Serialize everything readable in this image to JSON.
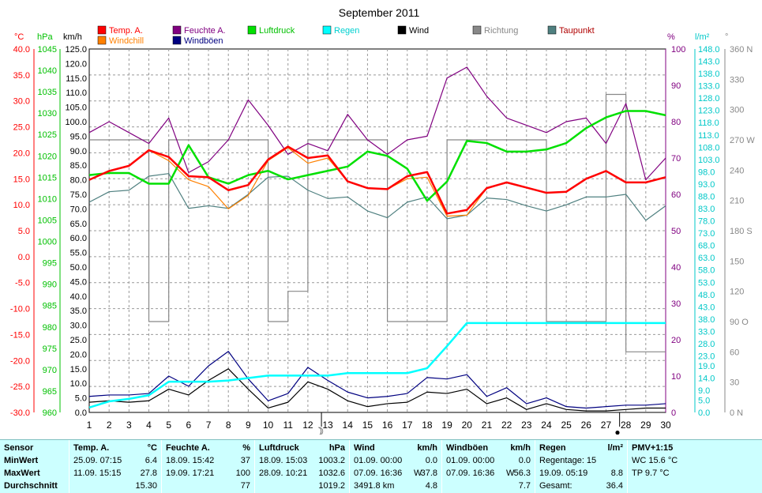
{
  "title": "September 2011",
  "axes": {
    "left_units": {
      "temp": "°C",
      "press": "hPa",
      "wind": "km/h"
    },
    "right_units": {
      "hum": "%",
      "rain": "l/m²",
      "dir": "°"
    },
    "temp_ticks": [
      "40.0",
      "35.0",
      "30.0",
      "25.0",
      "20.0",
      "15.0",
      "10.0",
      "5.0",
      "0.0",
      "-5.0",
      "-10.0",
      "-15.0",
      "-20.0",
      "-25.0",
      "-30.0"
    ],
    "press_ticks": [
      "1045",
      "1040",
      "1035",
      "1030",
      "1025",
      "1020",
      "1015",
      "1010",
      "1005",
      "1000",
      "995",
      "990",
      "985",
      "980",
      "975",
      "970",
      "965",
      "960"
    ],
    "wind_ticks": [
      "125.0",
      "120.0",
      "115.0",
      "110.0",
      "105.0",
      "100.0",
      "95.0",
      "90.0",
      "85.0",
      "80.0",
      "75.0",
      "70.0",
      "65.0",
      "60.0",
      "55.0",
      "50.0",
      "45.0",
      "40.0",
      "35.0",
      "30.0",
      "25.0",
      "20.0",
      "15.0",
      "10.0",
      "5.0",
      "0.0"
    ],
    "hum_ticks": [
      "100",
      "90",
      "80",
      "70",
      "60",
      "50",
      "40",
      "30",
      "20",
      "10",
      "0"
    ],
    "rain_ticks": [
      "148.0",
      "143.0",
      "138.0",
      "133.0",
      "128.0",
      "123.0",
      "118.0",
      "113.0",
      "108.0",
      "103.0",
      "98.0",
      "93.0",
      "88.0",
      "83.0",
      "78.0",
      "73.0",
      "68.0",
      "63.0",
      "58.0",
      "53.0",
      "48.0",
      "43.0",
      "38.0",
      "33.0",
      "28.0",
      "23.0",
      "19.0",
      "14.0",
      "9.0",
      "5.0",
      "0.0"
    ],
    "dir_ticks": [
      "360 N",
      "330",
      "300",
      "270 W",
      "240",
      "210",
      "180 S",
      "150",
      "120",
      "90 O",
      "60",
      "30",
      "0 N"
    ],
    "x_ticks": [
      "1",
      "2",
      "3",
      "4",
      "5",
      "6",
      "7",
      "8",
      "9",
      "10",
      "11",
      "12",
      "13",
      "14",
      "15",
      "16",
      "17",
      "18",
      "19",
      "20",
      "21",
      "22",
      "23",
      "24",
      "25",
      "26",
      "27",
      "28",
      "29",
      "30"
    ]
  },
  "moon_symbols": {
    "day13": "☽",
    "day28": "●"
  },
  "chart_data": {
    "type": "line",
    "title": "September 2011",
    "x": [
      1,
      2,
      3,
      4,
      5,
      6,
      7,
      8,
      9,
      10,
      11,
      12,
      13,
      14,
      15,
      16,
      17,
      18,
      19,
      20,
      21,
      22,
      23,
      24,
      25,
      26,
      27,
      28,
      29,
      30
    ],
    "series": [
      {
        "name": "Temp. A.",
        "unit": "°C",
        "color": "#ff0000",
        "values": [
          14.8,
          16.5,
          17.5,
          20.5,
          19.2,
          15.5,
          15.3,
          12.8,
          13.8,
          18.7,
          21.2,
          19.0,
          19.5,
          14.5,
          13.2,
          13.0,
          15.5,
          16.3,
          8.3,
          9.0,
          13.2,
          14.3,
          13.3,
          12.3,
          12.5,
          15.0,
          16.5,
          14.3,
          14.3,
          15.3
        ]
      },
      {
        "name": "Windchill",
        "unit": "°C",
        "color": "#ff8000",
        "values": [
          14.8,
          16.5,
          17.5,
          20.5,
          18.5,
          14.8,
          13.5,
          9.2,
          11.8,
          18.5,
          21.0,
          18.0,
          19.0,
          14.5,
          13.2,
          13.0,
          15.0,
          15.3,
          7.8,
          8.0,
          13.2,
          14.3,
          13.3,
          12.3,
          12.5,
          15.0,
          16.5,
          14.3,
          14.3,
          15.3
        ]
      },
      {
        "name": "Feuchte A.",
        "unit": "%",
        "color": "#800080",
        "values": [
          77,
          80,
          77,
          74,
          81,
          66,
          69,
          75,
          86,
          79,
          71,
          74,
          72,
          82,
          75,
          71,
          75,
          76,
          92,
          95,
          87,
          81,
          79,
          77,
          80,
          81,
          74,
          85,
          64,
          70
        ]
      },
      {
        "name": "Luftdruck",
        "unit": "hPa",
        "color": "#00e000",
        "values": [
          1015.5,
          1016,
          1016,
          1013.5,
          1013.5,
          1022.5,
          1015,
          1013.5,
          1015.5,
          1016.5,
          1014.5,
          1015.5,
          1016.5,
          1017.5,
          1021,
          1020,
          1017,
          1009.5,
          1014,
          1023.5,
          1023,
          1021,
          1021,
          1021.5,
          1023,
          1026.5,
          1029,
          1030.5,
          1030.5,
          1029.5
        ]
      },
      {
        "name": "Regen",
        "unit": "l/m²",
        "color": "#00ffff",
        "values": [
          2.0,
          4.5,
          5.5,
          7.0,
          12.5,
          12.5,
          12.5,
          13.0,
          14.0,
          15.0,
          15.0,
          15.0,
          15.0,
          16.0,
          16.0,
          16.0,
          16.0,
          18.0,
          27.0,
          36.4,
          36.4,
          36.4,
          36.4,
          36.4,
          36.4,
          36.4,
          36.4,
          36.4,
          36.4,
          36.4
        ]
      },
      {
        "name": "Wind",
        "unit": "km/h",
        "color": "#000000",
        "values": [
          3.5,
          4.0,
          3.5,
          4.0,
          8.0,
          6.0,
          11.0,
          15.0,
          8.0,
          1.5,
          3.5,
          10.5,
          8.0,
          4.0,
          2.0,
          3.0,
          3.5,
          7.0,
          6.5,
          8.0,
          3.0,
          5.0,
          1.0,
          3.0,
          1.0,
          0.5,
          0.5,
          1.0,
          1.5,
          1.5
        ]
      },
      {
        "name": "Richtung",
        "unit": "°",
        "color": "#888888",
        "values": [
          270,
          270,
          270,
          90,
          270,
          270,
          270,
          270,
          270,
          90,
          120,
          270,
          270,
          270,
          270,
          90,
          90,
          90,
          270,
          270,
          270,
          270,
          270,
          90,
          90,
          90,
          315,
          60,
          60,
          60
        ]
      },
      {
        "name": "Taupunkt",
        "unit": "°C",
        "color": "#4f8080",
        "values": [
          10.5,
          12.5,
          12.8,
          15.5,
          16.0,
          9.3,
          9.8,
          9.3,
          12.0,
          15.3,
          15.5,
          12.8,
          11.2,
          11.5,
          8.8,
          7.5,
          10.5,
          11.5,
          7.3,
          8.0,
          11.3,
          11.0,
          9.8,
          8.8,
          10.0,
          11.5,
          11.5,
          12.0,
          7.0,
          9.8
        ]
      },
      {
        "name": "Windböen",
        "unit": "km/h",
        "color": "#000080",
        "values": [
          5.5,
          6.0,
          6.0,
          6.5,
          12.5,
          9.0,
          16.0,
          21.0,
          11.5,
          4.0,
          6.5,
          15.5,
          11.0,
          7.0,
          5.0,
          5.5,
          6.5,
          12.0,
          11.5,
          13.0,
          5.5,
          8.5,
          3.0,
          5.0,
          2.0,
          1.5,
          2.0,
          2.5,
          2.5,
          3.0
        ]
      }
    ]
  },
  "stats": {
    "headers": {
      "sensor": "Sensor",
      "temp": "Temp. A.",
      "temp_unit": "°C",
      "hum": "Feuchte A.",
      "hum_unit": "%",
      "press": "Luftdruck",
      "press_unit": "hPa",
      "wind": "Wind",
      "wind_unit": "km/h",
      "gust": "Windböen",
      "gust_unit": "km/h",
      "rain": "Regen",
      "rain_unit": "l/m²",
      "pmv": "PMV+1:15"
    },
    "rows": {
      "min": "MinWert",
      "max": "MaxWert",
      "avg": "Durchschnitt"
    },
    "temp": {
      "min_date": "25.09.",
      "min_time": "07:15",
      "min_val": "6.4",
      "max_date": "11.09.",
      "max_time": "15:15",
      "max_val": "27.8",
      "avg": "15.30"
    },
    "hum": {
      "min_date": "18.09.",
      "min_time": "15:42",
      "min_val": "37",
      "max_date": "19.09.",
      "max_time": "17:21",
      "max_val": "100",
      "avg": "77"
    },
    "press": {
      "min_date": "18.09.",
      "min_time": "15:03",
      "min_val": "1003.2",
      "max_date": "28.09.",
      "max_time": "10:21",
      "max_val": "1032.6",
      "avg": "1019.2"
    },
    "wind": {
      "min_date": "01.09.",
      "min_time": "00:00",
      "min_val": "0.0",
      "max_date": "07.09.",
      "max_time": "16:36",
      "max_dir": "W",
      "max_val": "37.8",
      "dist": "3491.8 km",
      "avg": "4.8"
    },
    "gust": {
      "min_date": "01.09.",
      "min_time": "00:00",
      "min_val": "0.0",
      "max_date": "07.09.",
      "max_time": "16:36",
      "max_dir": "W",
      "max_val": "56.3",
      "avg": "7.7"
    },
    "rain": {
      "days_label": "Regentage: 15",
      "max_date": "19.09.",
      "max_time": "05:19",
      "max_val": "8.8",
      "total_label": "Gesamt:",
      "total_val": "36.4"
    },
    "pmv": {
      "wc": "WC 15.6 °C",
      "tp": "TP 9.7 °C"
    }
  }
}
